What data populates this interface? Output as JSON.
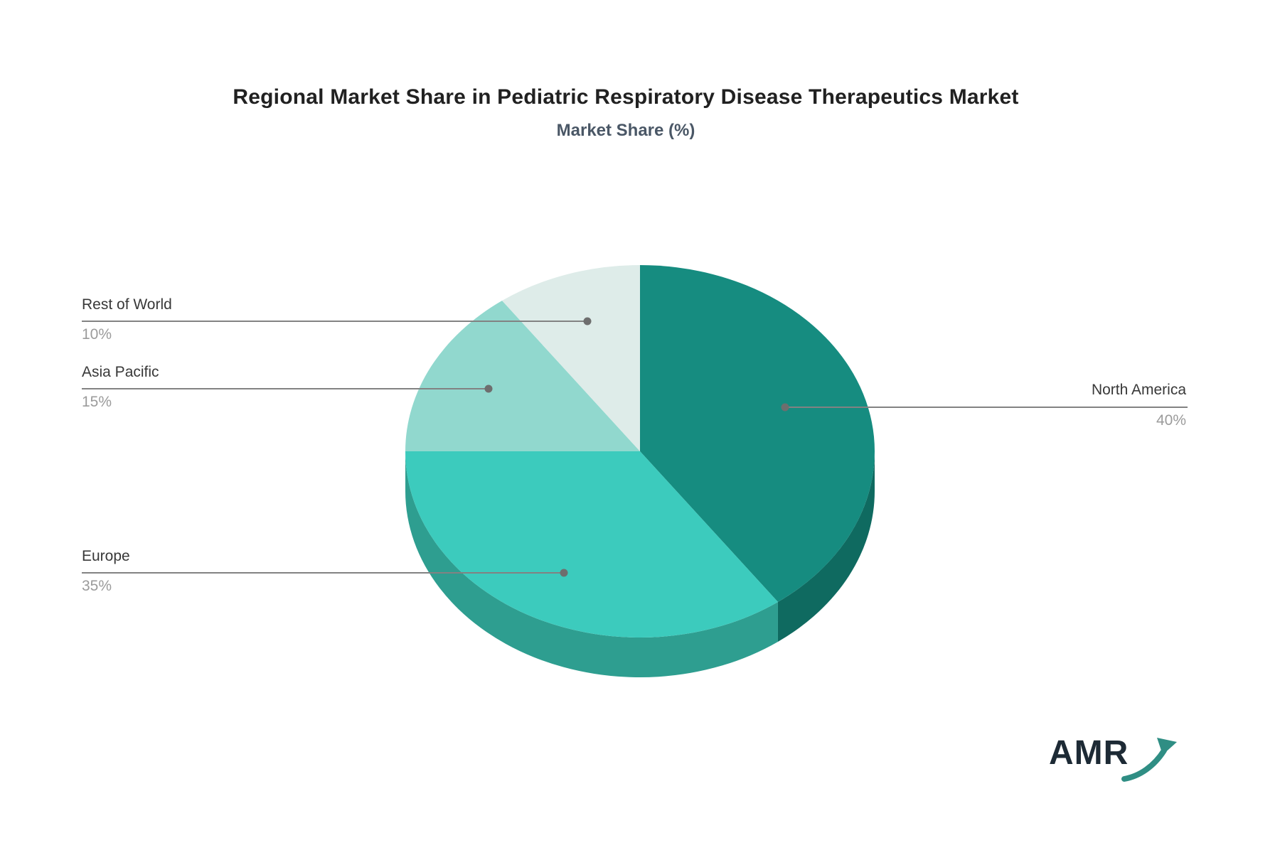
{
  "chart_data": {
    "type": "pie",
    "title": "Regional Market Share in Pediatric Respiratory Disease Therapeutics Market",
    "subtitle": "Market Share (%)",
    "unit": "%",
    "effect": "3d",
    "rotation": "clockwise-from-top",
    "legend_position": "none",
    "labels_as_callouts": true,
    "background_color": "#ffffff",
    "labels": [
      "North America",
      "Europe",
      "Asia Pacific",
      "Rest of World"
    ],
    "values": [
      40,
      35,
      15,
      10
    ],
    "display_values": [
      "40%",
      "35%",
      "15%",
      "10%"
    ],
    "colors": [
      "#168c80",
      "#3ccbbd",
      "#91d8ce",
      "#deece9"
    ],
    "side_colors": [
      "#0f6a60",
      "#2e9e90",
      "#6fb8ae",
      "#b9cdc9"
    ],
    "callout_line_color": "#828282",
    "callout_dot_color": "#6e6e6e",
    "title_color": "#212121",
    "subtitle_color": "#4a5766"
  },
  "branding": {
    "logo_text": "AMR",
    "logo_text_color": "#1d2a35",
    "logo_arrow_color": "#2f8e84"
  }
}
